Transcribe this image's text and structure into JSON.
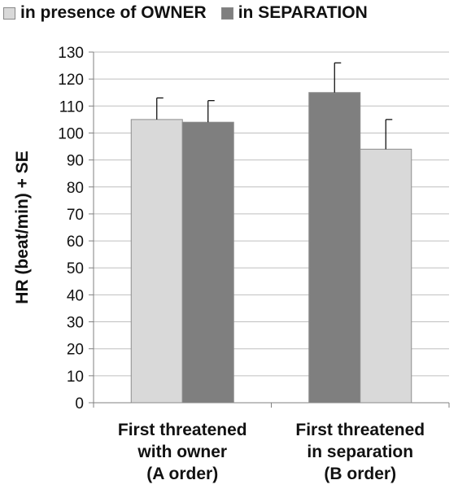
{
  "chart_data": {
    "type": "bar",
    "categories": [
      "First threatened\nwith owner\n(A order)",
      "First threatened\nin separation\n(B order)"
    ],
    "series": [
      {
        "name": "in presence of OWNER",
        "color": "#d9d9d9",
        "values": [
          105,
          94
        ],
        "errors": [
          8,
          11
        ]
      },
      {
        "name": "in SEPARATION",
        "color": "#7f7f7f",
        "values": [
          104,
          115
        ],
        "errors": [
          8,
          11
        ]
      }
    ],
    "bar_order": [
      [
        "in presence of OWNER",
        "in SEPARATION"
      ],
      [
        "in SEPARATION",
        "in presence of OWNER"
      ]
    ],
    "ylabel": "HR (beat/min) + SE",
    "xlabel": "",
    "ylim": [
      0,
      130
    ],
    "yticks": [
      0,
      10,
      20,
      30,
      40,
      50,
      60,
      70,
      80,
      90,
      100,
      110,
      120,
      130
    ],
    "grid": true,
    "legend_position": "top"
  }
}
